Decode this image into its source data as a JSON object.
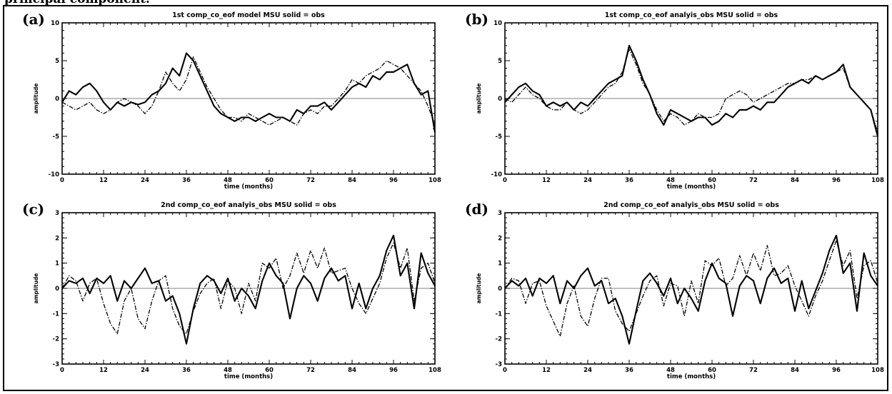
{
  "caption_fragment": "principal component.",
  "chart_data": [
    {
      "type": "line",
      "panel_label": "(a)",
      "title": "1st comp_co_eof model MSU     solid = obs",
      "xlabel": "time (months)",
      "ylabel": "amplitude",
      "xlim": [
        0,
        108
      ],
      "ylim": [
        -10,
        10
      ],
      "xticks": [
        0,
        12,
        24,
        36,
        48,
        60,
        72,
        84,
        96,
        108
      ],
      "yticks": [
        -10,
        -5,
        0,
        5,
        10
      ],
      "grid": false,
      "x": [
        0,
        2,
        4,
        6,
        8,
        10,
        12,
        14,
        16,
        18,
        20,
        22,
        24,
        26,
        28,
        30,
        32,
        34,
        36,
        38,
        40,
        42,
        44,
        46,
        48,
        50,
        52,
        54,
        56,
        58,
        60,
        62,
        64,
        66,
        68,
        70,
        72,
        74,
        76,
        78,
        80,
        82,
        84,
        86,
        88,
        90,
        92,
        94,
        96,
        98,
        100,
        102,
        104,
        106,
        108
      ],
      "series": [
        {
          "name": "obs",
          "style": "solid",
          "values": [
            -0.5,
            1.0,
            0.5,
            1.5,
            2.0,
            1.0,
            -0.5,
            -1.5,
            -0.5,
            -1.0,
            -0.5,
            -0.8,
            -0.5,
            0.5,
            1.0,
            2.0,
            4.0,
            3.0,
            6.0,
            5.0,
            3.0,
            1.0,
            -1.0,
            -2.0,
            -2.5,
            -3.0,
            -2.5,
            -2.5,
            -3.0,
            -2.5,
            -2.0,
            -2.5,
            -2.5,
            -3.0,
            -1.5,
            -2.0,
            -1.0,
            -1.0,
            -0.5,
            -1.5,
            -0.5,
            0.5,
            1.5,
            2.0,
            1.5,
            3.0,
            2.5,
            3.5,
            3.5,
            4.0,
            4.5,
            2.0,
            0.5,
            1.0,
            -4.5
          ]
        },
        {
          "name": "",
          "style": "dash-dot",
          "values": [
            -0.5,
            -1.0,
            -1.5,
            -1.0,
            -0.5,
            -1.5,
            -2.0,
            -1.5,
            -0.5,
            0.0,
            -0.5,
            -1.0,
            -2.0,
            -1.0,
            1.0,
            3.5,
            2.0,
            1.0,
            2.5,
            5.5,
            3.5,
            1.5,
            0.0,
            -1.5,
            -2.5,
            -2.5,
            -3.0,
            -2.0,
            -2.5,
            -3.0,
            -3.5,
            -3.0,
            -2.5,
            -3.0,
            -3.5,
            -2.0,
            -1.5,
            -2.0,
            -1.0,
            -1.0,
            0.0,
            1.0,
            2.5,
            2.0,
            3.0,
            3.5,
            4.0,
            5.0,
            4.5,
            4.0,
            3.0,
            2.0,
            1.0,
            -1.0,
            -3.5
          ]
        }
      ]
    },
    {
      "type": "line",
      "panel_label": "(b)",
      "title": "1st comp_co_eof analyis_obs MSU     solid = obs",
      "xlabel": "time (months)",
      "ylabel": "amplitude",
      "xlim": [
        0,
        108
      ],
      "ylim": [
        -10,
        10
      ],
      "xticks": [
        0,
        12,
        24,
        36,
        48,
        60,
        72,
        84,
        96,
        108
      ],
      "yticks": [
        -10,
        -5,
        0,
        5,
        10
      ],
      "grid": false,
      "x": [
        0,
        2,
        4,
        6,
        8,
        10,
        12,
        14,
        16,
        18,
        20,
        22,
        24,
        26,
        28,
        30,
        32,
        34,
        36,
        38,
        40,
        42,
        44,
        46,
        48,
        50,
        52,
        54,
        56,
        58,
        60,
        62,
        64,
        66,
        68,
        70,
        72,
        74,
        76,
        78,
        80,
        82,
        84,
        86,
        88,
        90,
        92,
        94,
        96,
        98,
        100,
        102,
        104,
        106,
        108
      ],
      "series": [
        {
          "name": "obs",
          "style": "solid",
          "values": [
            -0.5,
            0.5,
            1.5,
            2.0,
            1.0,
            0.5,
            -1.0,
            -0.5,
            -1.0,
            -0.5,
            -1.5,
            -0.5,
            -1.0,
            0.0,
            1.0,
            2.0,
            2.5,
            3.0,
            7.0,
            5.0,
            2.5,
            0.5,
            -2.0,
            -3.5,
            -1.5,
            -2.0,
            -2.5,
            -3.0,
            -2.5,
            -2.5,
            -3.5,
            -3.0,
            -2.0,
            -2.5,
            -1.5,
            -1.5,
            -1.0,
            -1.5,
            -0.5,
            -0.5,
            0.5,
            1.5,
            2.0,
            2.5,
            2.0,
            3.0,
            2.5,
            3.0,
            3.5,
            4.5,
            1.5,
            0.5,
            -0.5,
            -1.5,
            -5.0
          ]
        },
        {
          "name": "",
          "style": "dash-dot",
          "values": [
            0.0,
            -0.5,
            0.5,
            1.5,
            0.5,
            0.0,
            -1.0,
            -1.5,
            -1.5,
            -0.5,
            -1.5,
            -2.0,
            -1.5,
            -0.5,
            0.5,
            1.5,
            2.0,
            3.5,
            6.5,
            4.5,
            2.0,
            0.5,
            -1.5,
            -3.0,
            -2.0,
            -2.5,
            -3.5,
            -3.0,
            -2.0,
            -2.5,
            -2.5,
            -2.0,
            0.0,
            0.5,
            1.0,
            0.5,
            -0.5,
            0.0,
            0.5,
            1.0,
            1.5,
            2.0,
            2.0,
            2.5,
            2.5,
            3.0,
            2.5,
            3.0,
            3.5,
            4.0,
            1.5,
            0.5,
            -0.5,
            -1.5,
            -4.5
          ]
        }
      ]
    },
    {
      "type": "line",
      "panel_label": "(c)",
      "title": "2nd comp_co_eof analyis_obs MSU     solid = obs",
      "xlabel": "time (months)",
      "ylabel": "amplitude",
      "xlim": [
        0,
        108
      ],
      "ylim": [
        -3,
        3
      ],
      "xticks": [
        0,
        12,
        24,
        36,
        48,
        60,
        72,
        84,
        96,
        108
      ],
      "yticks": [
        -3,
        -2,
        -1,
        0,
        1,
        2,
        3
      ],
      "grid": false,
      "x": [
        0,
        2,
        4,
        6,
        8,
        10,
        12,
        14,
        16,
        18,
        20,
        22,
        24,
        26,
        28,
        30,
        32,
        34,
        36,
        38,
        40,
        42,
        44,
        46,
        48,
        50,
        52,
        54,
        56,
        58,
        60,
        62,
        64,
        66,
        68,
        70,
        72,
        74,
        76,
        78,
        80,
        82,
        84,
        86,
        88,
        90,
        92,
        94,
        96,
        98,
        100,
        102,
        104,
        106,
        108
      ],
      "series": [
        {
          "name": "obs",
          "style": "solid",
          "values": [
            0.0,
            0.3,
            0.2,
            0.4,
            -0.2,
            0.4,
            0.2,
            0.5,
            -0.5,
            0.3,
            0.0,
            0.4,
            0.8,
            0.2,
            0.3,
            -0.5,
            -0.3,
            -1.0,
            -2.2,
            -0.8,
            0.2,
            0.5,
            0.3,
            -0.2,
            0.4,
            -0.5,
            0.0,
            -0.3,
            -0.8,
            0.3,
            1.0,
            0.5,
            0.2,
            -1.2,
            0.0,
            0.5,
            0.2,
            -0.5,
            0.4,
            0.8,
            0.3,
            0.5,
            -0.8,
            0.2,
            -0.8,
            0.0,
            0.5,
            1.5,
            2.1,
            0.5,
            1.0,
            -0.8,
            1.4,
            0.6,
            0.1
          ]
        },
        {
          "name": "",
          "style": "dash-dot",
          "values": [
            0.0,
            0.5,
            0.3,
            -0.5,
            0.2,
            0.4,
            -0.6,
            -1.4,
            -1.8,
            -0.5,
            0.0,
            -1.2,
            -1.6,
            -0.5,
            0.3,
            0.5,
            -0.8,
            -1.5,
            -1.8,
            -0.9,
            -0.2,
            0.2,
            0.4,
            -0.8,
            0.3,
            0.0,
            -1.0,
            0.2,
            -0.5,
            1.0,
            0.8,
            1.2,
            0.0,
            0.5,
            1.4,
            0.6,
            1.5,
            0.8,
            1.6,
            0.6,
            0.7,
            0.8,
            0.0,
            -0.6,
            -1.0,
            -0.4,
            0.2,
            1.2,
            1.8,
            0.8,
            1.6,
            -0.5,
            0.8,
            1.0,
            0.2
          ]
        }
      ]
    },
    {
      "type": "line",
      "panel_label": "(d)",
      "title": "2nd comp_co_eof analyis_obs MSU     solid = obs",
      "xlabel": "time (months)",
      "ylabel": "amplitude",
      "xlim": [
        0,
        108
      ],
      "ylim": [
        -3,
        3
      ],
      "xticks": [
        0,
        12,
        24,
        36,
        48,
        60,
        72,
        84,
        96,
        108
      ],
      "yticks": [
        -3,
        -2,
        -1,
        0,
        1,
        2,
        3
      ],
      "grid": false,
      "x": [
        0,
        2,
        4,
        6,
        8,
        10,
        12,
        14,
        16,
        18,
        20,
        22,
        24,
        26,
        28,
        30,
        32,
        34,
        36,
        38,
        40,
        42,
        44,
        46,
        48,
        50,
        52,
        54,
        56,
        58,
        60,
        62,
        64,
        66,
        68,
        70,
        72,
        74,
        76,
        78,
        80,
        82,
        84,
        86,
        88,
        90,
        92,
        94,
        96,
        98,
        100,
        102,
        104,
        106,
        108
      ],
      "series": [
        {
          "name": "obs",
          "style": "solid",
          "values": [
            0.0,
            0.3,
            0.1,
            0.4,
            -0.3,
            0.4,
            0.2,
            0.5,
            -0.6,
            0.3,
            0.0,
            0.5,
            0.8,
            0.1,
            0.3,
            -0.6,
            -0.4,
            -1.1,
            -2.2,
            -0.9,
            0.3,
            0.6,
            0.2,
            -0.3,
            0.4,
            -0.6,
            0.0,
            -0.4,
            -0.9,
            0.3,
            1.0,
            0.4,
            0.2,
            -1.1,
            0.1,
            0.5,
            0.3,
            -0.6,
            0.4,
            0.8,
            0.2,
            0.4,
            -0.9,
            0.3,
            -0.8,
            -0.1,
            0.6,
            1.5,
            2.1,
            0.6,
            1.0,
            -0.9,
            1.4,
            0.5,
            0.1
          ]
        },
        {
          "name": "",
          "style": "dash-dot",
          "values": [
            0.0,
            0.4,
            0.3,
            -0.6,
            0.2,
            0.3,
            -0.7,
            -1.3,
            -1.9,
            -0.6,
            0.1,
            -1.1,
            -1.5,
            -0.4,
            0.4,
            0.4,
            -0.9,
            -1.4,
            -1.7,
            -1.0,
            -0.3,
            0.3,
            0.5,
            -0.7,
            0.2,
            0.1,
            -1.1,
            0.3,
            -0.6,
            1.1,
            0.9,
            1.2,
            0.1,
            0.4,
            1.3,
            0.5,
            1.4,
            0.7,
            1.7,
            0.5,
            0.6,
            0.9,
            0.1,
            -0.5,
            -1.1,
            -0.3,
            0.3,
            1.1,
            1.9,
            0.9,
            1.5,
            -0.4,
            0.9,
            1.1,
            0.2
          ]
        }
      ]
    }
  ]
}
